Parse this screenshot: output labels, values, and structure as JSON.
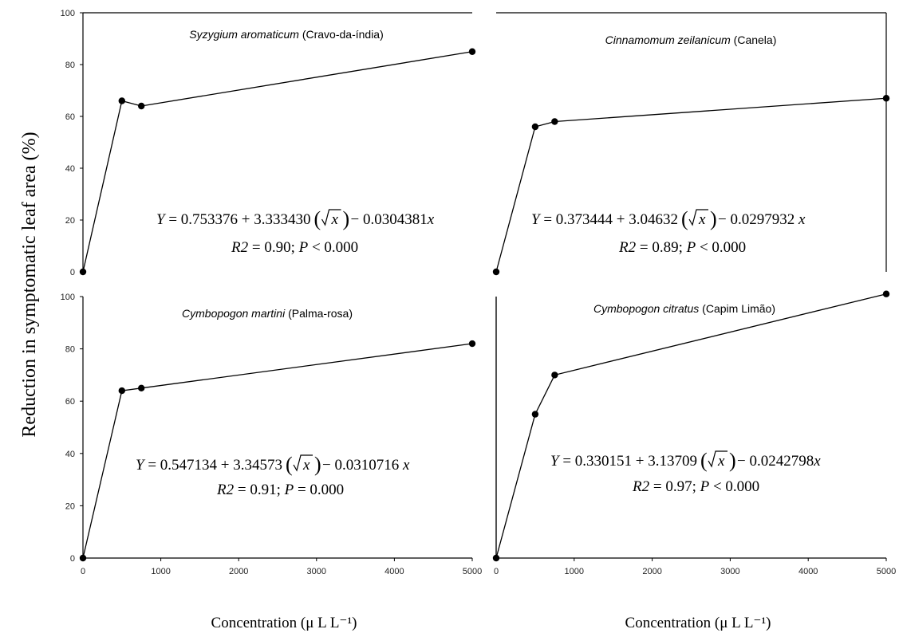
{
  "ylabel": "Reduction in symptomatic leaf area  (%)",
  "xlabel": "Concentration (μ L L⁻¹)",
  "chart_data": [
    {
      "type": "line",
      "title_species": "Syzygium aromaticum",
      "title_common": " (Cravo-da-índia)",
      "x": [
        0,
        500,
        750,
        5000
      ],
      "y": [
        0,
        66,
        64,
        85
      ],
      "xlim": [
        0,
        5000
      ],
      "ylim": [
        0,
        100
      ],
      "xticks": [
        0,
        1000,
        2000,
        3000,
        4000,
        5000
      ],
      "yticks": [
        0,
        20,
        40,
        60,
        80,
        100
      ],
      "equation": {
        "lhs": "Y",
        "a": " = 0.753376 + 3.333430",
        "sqrt": "x",
        "b": " − 0.0304381",
        "var": "x"
      },
      "stats": {
        "r": "R2",
        "r_val": " = 0.90; ",
        "p": "P",
        "p_val": " < 0.000"
      }
    },
    {
      "type": "line",
      "title_species": "Cinnamomum zeilanicum",
      "title_common": " (Canela)",
      "x": [
        0,
        500,
        750,
        5000
      ],
      "y": [
        0,
        56,
        58,
        67
      ],
      "xlim": [
        0,
        5000
      ],
      "ylim": [
        0,
        100
      ],
      "xticks": [
        0,
        1000,
        2000,
        3000,
        4000,
        5000
      ],
      "yticks": [
        0,
        20,
        40,
        60,
        80,
        100
      ],
      "equation": {
        "lhs": "Y",
        "a": " = 0.373444  + 3.04632 ",
        "sqrt": "x",
        "b": " − 0.0297932 ",
        "var": "x"
      },
      "stats": {
        "r": "R2",
        "r_val": " = 0.89; ",
        "p": "P",
        "p_val": " < 0.000"
      }
    },
    {
      "type": "line",
      "title_species": "Cymbopogon martini",
      "title_common": " (Palma-rosa)",
      "x": [
        0,
        500,
        750,
        5000
      ],
      "y": [
        0,
        64,
        65,
        82
      ],
      "xlim": [
        0,
        5000
      ],
      "ylim": [
        0,
        100
      ],
      "xticks": [
        0,
        1000,
        2000,
        3000,
        4000,
        5000
      ],
      "yticks": [
        0,
        20,
        40,
        60,
        80,
        100
      ],
      "equation": {
        "lhs": "Y",
        "a": " = 0.547134   + 3.34573 ",
        "sqrt": "x",
        "b": " − 0.0310716  ",
        "var": "x"
      },
      "stats": {
        "r": "R2",
        "r_val": " = 0.91; ",
        "p": "P",
        "p_val": " = 0.000"
      }
    },
    {
      "type": "line",
      "title_species": "Cymbopogon citratus",
      "title_common": " (Capim Limão)",
      "x": [
        0,
        500,
        750,
        5000
      ],
      "y": [
        0,
        55,
        70,
        101
      ],
      "xlim": [
        0,
        5000
      ],
      "ylim": [
        0,
        100
      ],
      "xticks": [
        0,
        1000,
        2000,
        3000,
        4000,
        5000
      ],
      "yticks": [
        0,
        20,
        40,
        60,
        80,
        100
      ],
      "equation": {
        "lhs": "Y",
        "a": " = 0.330151 + 3.13709",
        "sqrt": "x",
        "b": " − 0.0242798",
        "var": "x"
      },
      "stats": {
        "r": "R2",
        "r_val": " = 0.97; ",
        "p": "P",
        "p_val": " < 0.000"
      }
    }
  ]
}
